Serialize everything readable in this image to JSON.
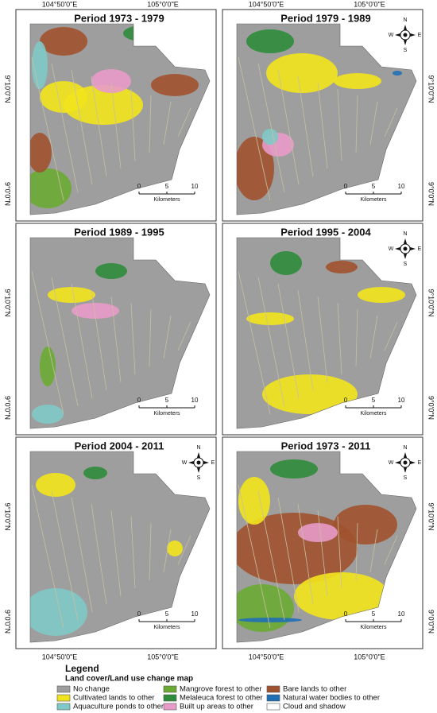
{
  "panels": [
    {
      "title": "Period 1973 - 1979"
    },
    {
      "title": "Period 1979 - 1989"
    },
    {
      "title": "Period 1989 - 1995"
    },
    {
      "title": "Period 1995 - 2004"
    },
    {
      "title": "Period 2004 - 2011"
    },
    {
      "title": "Period 1973 - 2011"
    }
  ],
  "coordinates": {
    "longitudes": [
      "104°50'0\"E",
      "105°0'0\"E"
    ],
    "latitudes": [
      "9°10'0\"N",
      "9°0'0\"N"
    ]
  },
  "compass": {
    "north": "N",
    "south": "S",
    "east": "E",
    "west": "W"
  },
  "scale_bar": {
    "ticks": [
      "0",
      "5",
      "10"
    ],
    "unit": "Kilometers"
  },
  "legend": {
    "title": "Legend",
    "subtitle": "Land cover/Land use change map",
    "items": [
      {
        "label": "No change",
        "color": "#9e9e9e"
      },
      {
        "label": "Cultivated lands to other",
        "color": "#f2e41c"
      },
      {
        "label": "Aquaculture ponds to other",
        "color": "#80c9c6"
      },
      {
        "label": "Mangrove forest to other",
        "color": "#6aaa32"
      },
      {
        "label": "Melaleuca forest to other",
        "color": "#2e8b3a"
      },
      {
        "label": "Built up areas to other",
        "color": "#e89ac8"
      },
      {
        "label": "Bare lands to other",
        "color": "#a0522d"
      },
      {
        "label": "Natural water bodies to other",
        "color": "#1f6fb5"
      },
      {
        "label": "Cloud and shadow",
        "color": "#ffffff"
      }
    ]
  }
}
